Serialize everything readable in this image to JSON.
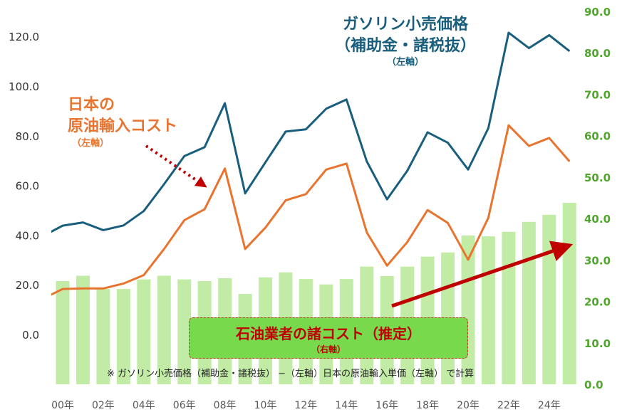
{
  "chart_data": {
    "type": "bar+line",
    "categories": [
      "00年",
      "01",
      "02年",
      "03",
      "04年",
      "05",
      "06年",
      "07",
      "08年",
      "09",
      "10年",
      "11",
      "12年",
      "13",
      "14年",
      "15",
      "16年",
      "17",
      "18年",
      "19",
      "20年",
      "21",
      "22年",
      "23",
      "24年",
      "25"
    ],
    "x_tick_labels": [
      "00年",
      "02年",
      "04年",
      "06年",
      "08年",
      "10年",
      "12年",
      "14年",
      "16年",
      "18年",
      "20年",
      "22年",
      "24年"
    ],
    "years": [
      2000,
      2001,
      2002,
      2003,
      2004,
      2005,
      2006,
      2007,
      2008,
      2009,
      2010,
      2011,
      2012,
      2013,
      2014,
      2015,
      2016,
      2017,
      2018,
      2019,
      2020,
      2021,
      2022,
      2023,
      2024,
      2025
    ],
    "series": [
      {
        "name": "ガソリン小売価格（補助金・諸税抜）",
        "axis": "left",
        "type": "line",
        "color": "#1a5e7e",
        "prev_value": 39.5,
        "values": [
          43.8,
          45.1,
          42.0,
          43.9,
          49.7,
          60.5,
          71.8,
          75.4,
          93.1,
          56.8,
          69.3,
          81.7,
          82.6,
          90.9,
          94.6,
          69.7,
          54.4,
          65.9,
          81.4,
          77.2,
          66.4,
          83.1,
          121.5,
          115.3,
          120.5,
          114.1
        ]
      },
      {
        "name": "日本の原油輸入コスト",
        "axis": "left",
        "type": "line",
        "color": "#e8742f",
        "prev_value": 14.3,
        "values": [
          18.3,
          18.5,
          18.5,
          20.5,
          23.9,
          34.4,
          46.0,
          50.4,
          66.8,
          34.4,
          43.0,
          54.0,
          56.5,
          66.4,
          68.8,
          41.1,
          27.7,
          37.2,
          50.1,
          44.9,
          30.1,
          47.0,
          84.2,
          75.9,
          79.1,
          69.7
        ]
      },
      {
        "name": "石油業者の諸コスト（推定）",
        "axis": "right",
        "type": "bar",
        "color": "#c2ecA5",
        "values": [
          24.9,
          26.2,
          23.0,
          23.0,
          25.3,
          26.2,
          25.3,
          24.9,
          25.6,
          21.8,
          25.8,
          27.0,
          25.4,
          24.1,
          25.4,
          28.4,
          26.1,
          28.4,
          30.8,
          31.8,
          35.9,
          35.7,
          36.8,
          39.2,
          40.9,
          43.8
        ]
      }
    ],
    "left_axis": {
      "ylim": [
        -20,
        130
      ],
      "ticks": [
        "120.0",
        "100.0",
        "80.0",
        "60.0",
        "40.0",
        "20.0",
        "0.0"
      ],
      "color": "#333333"
    },
    "right_axis": {
      "ylim": [
        0,
        90
      ],
      "ticks": [
        "90.0",
        "80.0",
        "70.0",
        "60.0",
        "50.0",
        "40.0",
        "30.0",
        "20.0",
        "10.0",
        "0.0"
      ],
      "color": "#4ea72a"
    },
    "grid": false,
    "annotations": {
      "gas_title": "ガソリン小売価格",
      "gas_title2": "（補助金・諸税抜）",
      "gas_axis": "（左軸）",
      "oil_title": "日本の",
      "oil_title2": "原油輸入コスト",
      "oil_axis": "（左軸）",
      "cost_title": "石油業者の諸コスト（推定）",
      "cost_axis": "（右軸）",
      "footnote": "※ ガソリン小売価格（補助金・諸税抜） −（左軸）日本の原油輸入単価（左軸） で計算"
    },
    "arrow_color": "#c00000"
  }
}
